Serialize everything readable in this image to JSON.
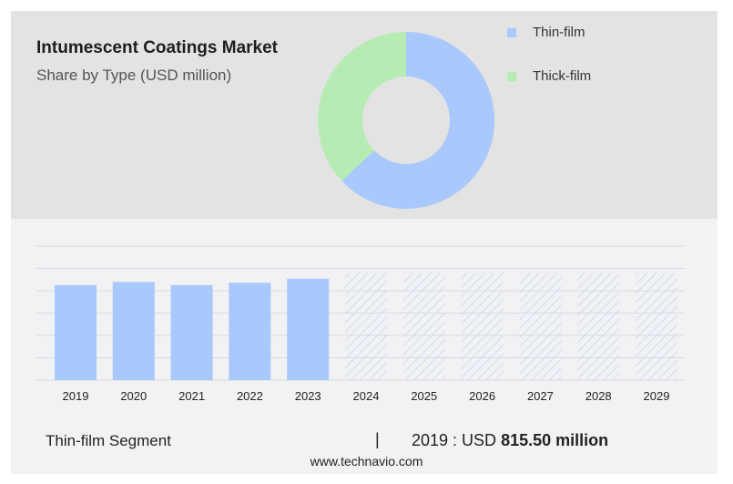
{
  "title": "Intumescent Coatings Market",
  "subtitle": "Share by Type (USD million)",
  "legend": [
    {
      "label": "Thin-film",
      "color": "#a9c8fb"
    },
    {
      "label": "Thick-film",
      "color": "#b6ecb4"
    }
  ],
  "footer": {
    "segment": "Thin-film Segment",
    "divider": "|",
    "value_prefix": "2019 : USD",
    "value": "815.50 million"
  },
  "source": "www.technavio.com",
  "chart_data": [
    {
      "type": "pie",
      "variant": "donut",
      "categories": [
        "Thin-film",
        "Thick-film"
      ],
      "values": [
        63,
        37
      ],
      "colors": [
        "#a9c8fb",
        "#b6ecb4"
      ]
    },
    {
      "type": "bar",
      "categories": [
        "2019",
        "2020",
        "2021",
        "2022",
        "2023",
        "2024",
        "2025",
        "2026",
        "2027",
        "2028",
        "2029"
      ],
      "values": [
        815.5,
        842,
        815.5,
        835,
        870,
        null,
        null,
        null,
        null,
        null,
        null
      ],
      "forecast_categories": [
        "2024",
        "2025",
        "2026",
        "2027",
        "2028",
        "2029"
      ],
      "ylim": [
        0,
        1150
      ],
      "grid": true,
      "colors": {
        "actual": "#a9c8fb",
        "forecast_hatch": "#c3d4f7"
      }
    }
  ]
}
